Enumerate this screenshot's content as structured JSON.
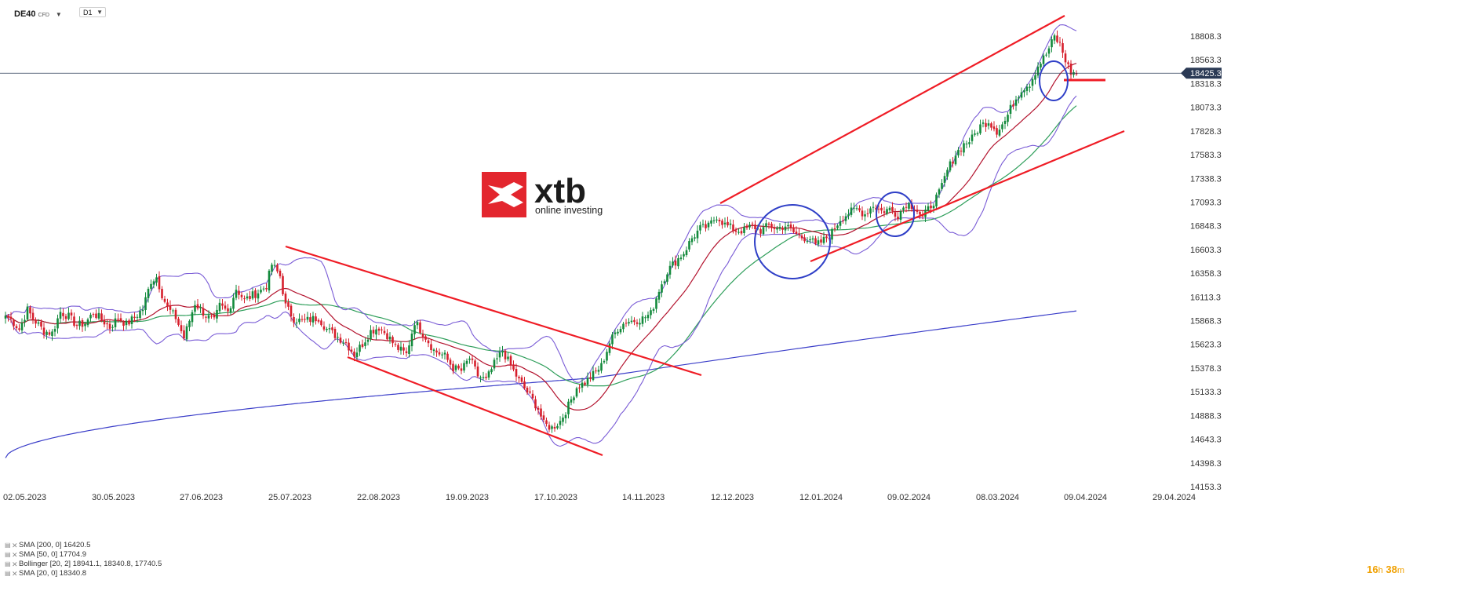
{
  "header": {
    "symbol": "DE40",
    "symbol_sub": "CFD",
    "timeframe": "D1"
  },
  "logo": {
    "brand": "xtb",
    "tagline": "online investing",
    "color": "#e3262e"
  },
  "legend": [
    {
      "text": "SMA  [200, 0]  16420.5",
      "color": "#3b3ec9"
    },
    {
      "text": "SMA  [50, 0]  17704.9",
      "color": "#2e9e5a"
    },
    {
      "text": "Bollinger  [20, 2]  18941.1,  18340.8,  17740.5",
      "color": "#7a5cd6"
    },
    {
      "text": "SMA  [20, 0]  18340.8",
      "color": "#b3132e"
    }
  ],
  "countdown": {
    "h": "16",
    "h_unit": "h",
    "m": "38",
    "m_unit": "m"
  },
  "colors": {
    "up": "#138a3c",
    "down": "#d61f2c",
    "sma20": "#b3132e",
    "sma50": "#2e9e5a",
    "sma200": "#3b3ec9",
    "bollinger": "#7a5cd6",
    "trend": "#ef1c25",
    "circle": "#2f3fc7",
    "price_line": "#2b3a55"
  },
  "chart_data": {
    "type": "candlestick",
    "yticks": [
      "18808.3",
      "18563.3",
      "18318.3",
      "18073.3",
      "17828.3",
      "17583.3",
      "17338.3",
      "17093.3",
      "16848.3",
      "16603.3",
      "16358.3",
      "16113.3",
      "15868.3",
      "15623.3",
      "15378.3",
      "15133.3",
      "14888.3",
      "14643.3",
      "14398.3",
      "14153.3"
    ],
    "xticks": [
      "02.05.2023",
      "30.05.2023",
      "27.06.2023",
      "25.07.2023",
      "22.08.2023",
      "19.09.2023",
      "17.10.2023",
      "14.11.2023",
      "12.12.2023",
      "12.01.2024",
      "09.02.2024",
      "08.03.2024",
      "09.04.2024",
      "29.04.2024"
    ],
    "current_price": "18425.3",
    "y_range": [
      14153.3,
      18808.3
    ],
    "anchors": [
      [
        0,
        15920
      ],
      [
        2,
        15880
      ],
      [
        5,
        15780
      ],
      [
        8,
        15980
      ],
      [
        10,
        15890
      ],
      [
        14,
        15760
      ],
      [
        17,
        15740
      ],
      [
        20,
        15960
      ],
      [
        23,
        15910
      ],
      [
        26,
        15820
      ],
      [
        29,
        15840
      ],
      [
        32,
        15950
      ],
      [
        35,
        15880
      ],
      [
        38,
        15800
      ],
      [
        41,
        15900
      ],
      [
        44,
        15830
      ],
      [
        47,
        15900
      ],
      [
        50,
        15990
      ],
      [
        53,
        16280
      ],
      [
        55,
        16320
      ],
      [
        57,
        16140
      ],
      [
        59,
        16000
      ],
      [
        62,
        15900
      ],
      [
        65,
        15690
      ],
      [
        69,
        16050
      ],
      [
        73,
        15920
      ],
      [
        76,
        15860
      ],
      [
        78,
        16020
      ],
      [
        81,
        15960
      ],
      [
        84,
        16200
      ],
      [
        87,
        16080
      ],
      [
        90,
        16130
      ],
      [
        93,
        16180
      ],
      [
        95,
        16230
      ],
      [
        97,
        16450
      ],
      [
        100,
        16330
      ],
      [
        102,
        16020
      ],
      [
        105,
        15890
      ],
      [
        108,
        15860
      ],
      [
        111,
        15880
      ],
      [
        114,
        15900
      ],
      [
        117,
        15780
      ],
      [
        121,
        15700
      ],
      [
        124,
        15640
      ],
      [
        127,
        15520
      ],
      [
        130,
        15630
      ],
      [
        133,
        15760
      ],
      [
        136,
        15800
      ],
      [
        139,
        15720
      ],
      [
        142,
        15600
      ],
      [
        146,
        15520
      ],
      [
        149,
        15860
      ],
      [
        153,
        15700
      ],
      [
        156,
        15560
      ],
      [
        160,
        15500
      ],
      [
        163,
        15380
      ],
      [
        166,
        15350
      ],
      [
        169,
        15480
      ],
      [
        172,
        15300
      ],
      [
        175,
        15250
      ],
      [
        178,
        15420
      ],
      [
        181,
        15560
      ],
      [
        184,
        15400
      ],
      [
        187,
        15250
      ],
      [
        191,
        15090
      ],
      [
        194,
        14960
      ],
      [
        196,
        14800
      ],
      [
        199,
        14760
      ],
      [
        202,
        14830
      ],
      [
        205,
        14990
      ],
      [
        208,
        15180
      ],
      [
        211,
        15230
      ],
      [
        214,
        15310
      ],
      [
        217,
        15400
      ],
      [
        220,
        15640
      ],
      [
        223,
        15790
      ],
      [
        226,
        15860
      ],
      [
        229,
        15870
      ],
      [
        232,
        15890
      ],
      [
        235,
        15940
      ],
      [
        238,
        16190
      ],
      [
        241,
        16380
      ],
      [
        244,
        16480
      ],
      [
        247,
        16570
      ],
      [
        250,
        16720
      ],
      [
        253,
        16820
      ],
      [
        256,
        16840
      ],
      [
        259,
        16950
      ],
      [
        262,
        16860
      ],
      [
        266,
        16800
      ],
      [
        269,
        16800
      ],
      [
        272,
        16850
      ],
      [
        275,
        16800
      ],
      [
        278,
        16850
      ],
      [
        281,
        16820
      ],
      [
        284,
        16850
      ],
      [
        287,
        16780
      ],
      [
        290,
        16730
      ],
      [
        293,
        16720
      ],
      [
        295,
        16640
      ],
      [
        298,
        16700
      ],
      [
        301,
        16780
      ],
      [
        304,
        16920
      ],
      [
        307,
        16980
      ],
      [
        310,
        17020
      ],
      [
        313,
        16970
      ],
      [
        316,
        17060
      ],
      [
        319,
        17000
      ],
      [
        322,
        17020
      ],
      [
        325,
        16960
      ],
      [
        328,
        17080
      ],
      [
        331,
        17050
      ],
      [
        334,
        16930
      ],
      [
        337,
        17060
      ],
      [
        340,
        17180
      ],
      [
        343,
        17420
      ],
      [
        346,
        17590
      ],
      [
        349,
        17690
      ],
      [
        352,
        17750
      ],
      [
        355,
        17880
      ],
      [
        358,
        17930
      ],
      [
        361,
        17830
      ],
      [
        364,
        17930
      ],
      [
        367,
        18120
      ],
      [
        370,
        18260
      ],
      [
        373,
        18320
      ],
      [
        376,
        18500
      ],
      [
        379,
        18620
      ],
      [
        382,
        18800
      ],
      [
        384,
        18720
      ],
      [
        386,
        18560
      ],
      [
        388,
        18430
      ],
      [
        390,
        18420
      ]
    ],
    "sma20_end": 18340.8,
    "sma50_end": 17704.9,
    "sma200_end": 16420.5,
    "bollinger_end": [
      18941.1,
      18340.8,
      17740.5
    ]
  }
}
